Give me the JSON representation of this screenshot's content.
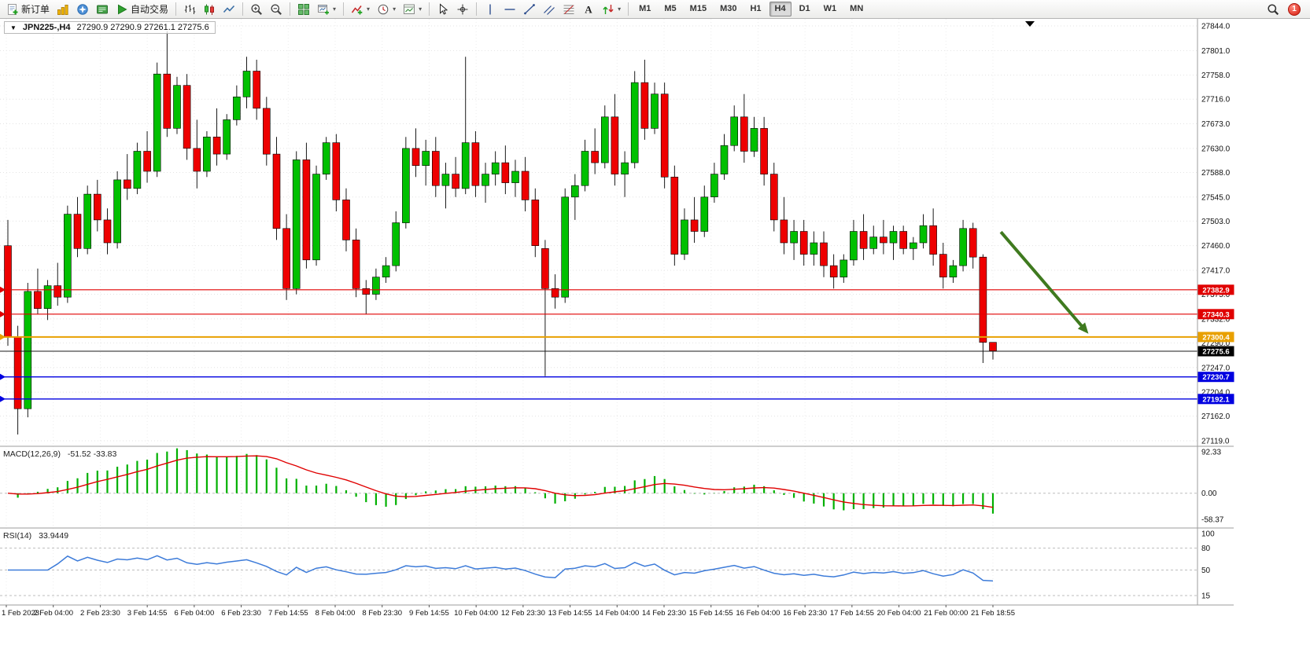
{
  "toolbar": {
    "timeframes": [
      "M1",
      "M5",
      "M15",
      "M30",
      "H1",
      "H4",
      "D1",
      "W1",
      "MN"
    ],
    "active_timeframe": "H4",
    "items": [
      {
        "name": "new-order-button",
        "icon": "new-order",
        "label": "新订单"
      },
      {
        "name": "market-watch-button",
        "icon": "market-watch"
      },
      {
        "name": "navigator-button",
        "icon": "navigator"
      },
      {
        "name": "terminal-button",
        "icon": "terminal"
      },
      {
        "name": "autotrading-button",
        "icon": "autotrading",
        "label": "自动交易"
      },
      {
        "type": "sep"
      },
      {
        "name": "bar-chart-button",
        "icon": "bars"
      },
      {
        "name": "candlestick-chart-button",
        "icon": "candles"
      },
      {
        "name": "line-chart-button",
        "icon": "line"
      },
      {
        "type": "sep"
      },
      {
        "name": "zoom-in-button",
        "icon": "zoom-in"
      },
      {
        "name": "zoom-out-button",
        "icon": "zoom-out"
      },
      {
        "type": "sep"
      },
      {
        "name": "tile-windows-button",
        "icon": "tile"
      },
      {
        "name": "new-chart-button",
        "icon": "new-chart",
        "caret": true
      },
      {
        "type": "sep"
      },
      {
        "name": "indicators-button",
        "icon": "indicators",
        "caret": true
      },
      {
        "name": "periods-button",
        "icon": "clock",
        "caret": true
      },
      {
        "name": "templates-button",
        "icon": "template",
        "caret": true
      },
      {
        "type": "sep"
      },
      {
        "name": "cursor-button",
        "icon": "cursor"
      },
      {
        "name": "crosshair-button",
        "icon": "crosshair"
      },
      {
        "type": "sep"
      },
      {
        "name": "vertical-line-button",
        "icon": "vline"
      },
      {
        "name": "horizontal-line-button",
        "icon": "hline"
      },
      {
        "name": "trendline-button",
        "icon": "trendline"
      },
      {
        "name": "equidistant-channel-button",
        "icon": "channel"
      },
      {
        "name": "fibonacci-button",
        "icon": "fibo"
      },
      {
        "name": "text-button",
        "icon": "text"
      },
      {
        "name": "arrows-button",
        "icon": "arrows",
        "caret": true
      },
      {
        "type": "sep"
      },
      {
        "type": "timeframes"
      },
      {
        "type": "spacer"
      },
      {
        "name": "search-button",
        "icon": "search"
      },
      {
        "type": "badge",
        "name": "notification-badge",
        "label": "1"
      }
    ]
  },
  "chart_data": {
    "type": "candlestick",
    "title": "JPN225-,H4",
    "ohlc_label": "27290.9 27290.9 27261.1 27275.6",
    "up_color": "#00C000",
    "down_color": "#EE0000",
    "price_axis": {
      "max": 27844.0,
      "min": 27119.0,
      "ticks": [
        27844.0,
        27801.0,
        27758.0,
        27716.0,
        27673.0,
        27630.0,
        27588.0,
        27545.0,
        27503.0,
        27460.0,
        27417.0,
        27375.0,
        27332.0,
        27290.0,
        27247.0,
        27204.0,
        27162.0,
        27119.0
      ]
    },
    "time_axis": [
      "1 Feb 2023",
      "2 Feb 04:00",
      "2 Feb 23:30",
      "3 Feb 14:55",
      "6 Feb 04:00",
      "6 Feb 23:30",
      "7 Feb 14:55",
      "8 Feb 04:00",
      "8 Feb 23:30",
      "9 Feb 14:55",
      "10 Feb 04:00",
      "12 Feb 23:30",
      "13 Feb 14:55",
      "14 Feb 04:00",
      "14 Feb 23:30",
      "15 Feb 14:55",
      "16 Feb 04:00",
      "16 Feb 23:30",
      "17 Feb 14:55",
      "20 Feb 04:00",
      "21 Feb 00:00",
      "21 Feb 18:55"
    ],
    "candles": [
      [
        27460,
        27505,
        27285,
        27300
      ],
      [
        27300,
        27320,
        27130,
        27175
      ],
      [
        27175,
        27395,
        27160,
        27380
      ],
      [
        27380,
        27420,
        27340,
        27350
      ],
      [
        27350,
        27400,
        27330,
        27390
      ],
      [
        27390,
        27430,
        27355,
        27370
      ],
      [
        27370,
        27530,
        27360,
        27515
      ],
      [
        27515,
        27545,
        27440,
        27455
      ],
      [
        27455,
        27565,
        27445,
        27550
      ],
      [
        27550,
        27575,
        27485,
        27505
      ],
      [
        27505,
        27525,
        27445,
        27465
      ],
      [
        27465,
        27590,
        27455,
        27575
      ],
      [
        27575,
        27620,
        27540,
        27560
      ],
      [
        27560,
        27640,
        27550,
        27625
      ],
      [
        27625,
        27660,
        27570,
        27590
      ],
      [
        27590,
        27780,
        27580,
        27760
      ],
      [
        27760,
        27835,
        27650,
        27665
      ],
      [
        27665,
        27755,
        27655,
        27740
      ],
      [
        27740,
        27760,
        27610,
        27630
      ],
      [
        27630,
        27680,
        27560,
        27590
      ],
      [
        27590,
        27660,
        27580,
        27650
      ],
      [
        27650,
        27700,
        27600,
        27620
      ],
      [
        27620,
        27690,
        27610,
        27680
      ],
      [
        27680,
        27740,
        27670,
        27720
      ],
      [
        27720,
        27790,
        27700,
        27765
      ],
      [
        27765,
        27785,
        27680,
        27700
      ],
      [
        27700,
        27720,
        27600,
        27620
      ],
      [
        27620,
        27650,
        27470,
        27490
      ],
      [
        27490,
        27515,
        27365,
        27385
      ],
      [
        27385,
        27625,
        27375,
        27610
      ],
      [
        27610,
        27640,
        27420,
        27435
      ],
      [
        27435,
        27600,
        27425,
        27585
      ],
      [
        27585,
        27650,
        27575,
        27640
      ],
      [
        27640,
        27655,
        27520,
        27540
      ],
      [
        27540,
        27560,
        27450,
        27470
      ],
      [
        27470,
        27490,
        27370,
        27385
      ],
      [
        27385,
        27400,
        27340,
        27375
      ],
      [
        27375,
        27420,
        27365,
        27405
      ],
      [
        27405,
        27440,
        27395,
        27425
      ],
      [
        27425,
        27520,
        27415,
        27500
      ],
      [
        27500,
        27650,
        27490,
        27630
      ],
      [
        27630,
        27665,
        27580,
        27600
      ],
      [
        27600,
        27645,
        27565,
        27625
      ],
      [
        27625,
        27650,
        27545,
        27565
      ],
      [
        27565,
        27605,
        27525,
        27585
      ],
      [
        27585,
        27615,
        27545,
        27560
      ],
      [
        27560,
        27790,
        27550,
        27640
      ],
      [
        27640,
        27660,
        27545,
        27565
      ],
      [
        27565,
        27605,
        27535,
        27585
      ],
      [
        27585,
        27625,
        27565,
        27605
      ],
      [
        27605,
        27635,
        27550,
        27570
      ],
      [
        27570,
        27610,
        27545,
        27590
      ],
      [
        27590,
        27615,
        27520,
        27540
      ],
      [
        27540,
        27560,
        27440,
        27460
      ],
      [
        27455,
        27470,
        27232,
        27385
      ],
      [
        27385,
        27410,
        27350,
        27370
      ],
      [
        27370,
        27560,
        27360,
        27545
      ],
      [
        27545,
        27585,
        27505,
        27565
      ],
      [
        27565,
        27645,
        27555,
        27625
      ],
      [
        27625,
        27665,
        27585,
        27605
      ],
      [
        27605,
        27705,
        27595,
        27685
      ],
      [
        27685,
        27725,
        27565,
        27585
      ],
      [
        27585,
        27625,
        27545,
        27605
      ],
      [
        27605,
        27765,
        27595,
        27745
      ],
      [
        27745,
        27785,
        27645,
        27665
      ],
      [
        27665,
        27745,
        27655,
        27725
      ],
      [
        27725,
        27745,
        27560,
        27580
      ],
      [
        27580,
        27600,
        27425,
        27445
      ],
      [
        27445,
        27525,
        27435,
        27505
      ],
      [
        27505,
        27545,
        27465,
        27485
      ],
      [
        27485,
        27565,
        27475,
        27545
      ],
      [
        27545,
        27605,
        27535,
        27585
      ],
      [
        27585,
        27655,
        27575,
        27635
      ],
      [
        27635,
        27705,
        27625,
        27685
      ],
      [
        27685,
        27725,
        27605,
        27625
      ],
      [
        27625,
        27685,
        27615,
        27665
      ],
      [
        27665,
        27685,
        27565,
        27585
      ],
      [
        27585,
        27605,
        27485,
        27505
      ],
      [
        27505,
        27545,
        27445,
        27465
      ],
      [
        27465,
        27505,
        27435,
        27485
      ],
      [
        27485,
        27505,
        27425,
        27445
      ],
      [
        27445,
        27485,
        27425,
        27465
      ],
      [
        27465,
        27485,
        27405,
        27425
      ],
      [
        27425,
        27445,
        27385,
        27405
      ],
      [
        27405,
        27445,
        27395,
        27435
      ],
      [
        27435,
        27505,
        27425,
        27485
      ],
      [
        27485,
        27515,
        27435,
        27455
      ],
      [
        27455,
        27495,
        27445,
        27475
      ],
      [
        27475,
        27505,
        27445,
        27465
      ],
      [
        27465,
        27495,
        27435,
        27485
      ],
      [
        27485,
        27495,
        27445,
        27455
      ],
      [
        27455,
        27475,
        27435,
        27465
      ],
      [
        27465,
        27515,
        27455,
        27495
      ],
      [
        27495,
        27525,
        27425,
        27445
      ],
      [
        27445,
        27465,
        27385,
        27405
      ],
      [
        27405,
        27435,
        27395,
        27425
      ],
      [
        27425,
        27505,
        27415,
        27490
      ],
      [
        27490,
        27500,
        27420,
        27440
      ],
      [
        27440,
        27445,
        27255,
        27291
      ],
      [
        27291,
        27291,
        27261,
        27276
      ]
    ],
    "hlines": [
      {
        "price": 27382.9,
        "color": "#E00000",
        "width": 1.2
      },
      {
        "price": 27340.3,
        "color": "#E00000",
        "width": 1.2
      },
      {
        "price": 27300.4,
        "color": "#E8A000",
        "width": 2.0
      },
      {
        "price": 27230.7,
        "color": "#0000E0",
        "width": 1.4
      },
      {
        "price": 27192.1,
        "color": "#0000E0",
        "width": 1.4
      }
    ],
    "bid": {
      "price": 27275.6,
      "color": "#000000"
    },
    "macd": {
      "label": "MACD(12,26,9)",
      "values_label": "-51.52 -33.83",
      "scale_ticks": [
        92.33,
        0.0,
        -58.37
      ],
      "histogram_color": "#00B000",
      "signal_color": "#E00000"
    },
    "rsi": {
      "label": "RSI(14)",
      "value_label": "33.9449",
      "scale_ticks": [
        100,
        80,
        50,
        15
      ],
      "line_color": "#3C7BD9"
    },
    "arrow": {
      "from_index": 99.8,
      "from_price": 27484,
      "to_index": 108.6,
      "to_price": 27306,
      "color": "#3F7A1F",
      "width": 4
    }
  }
}
